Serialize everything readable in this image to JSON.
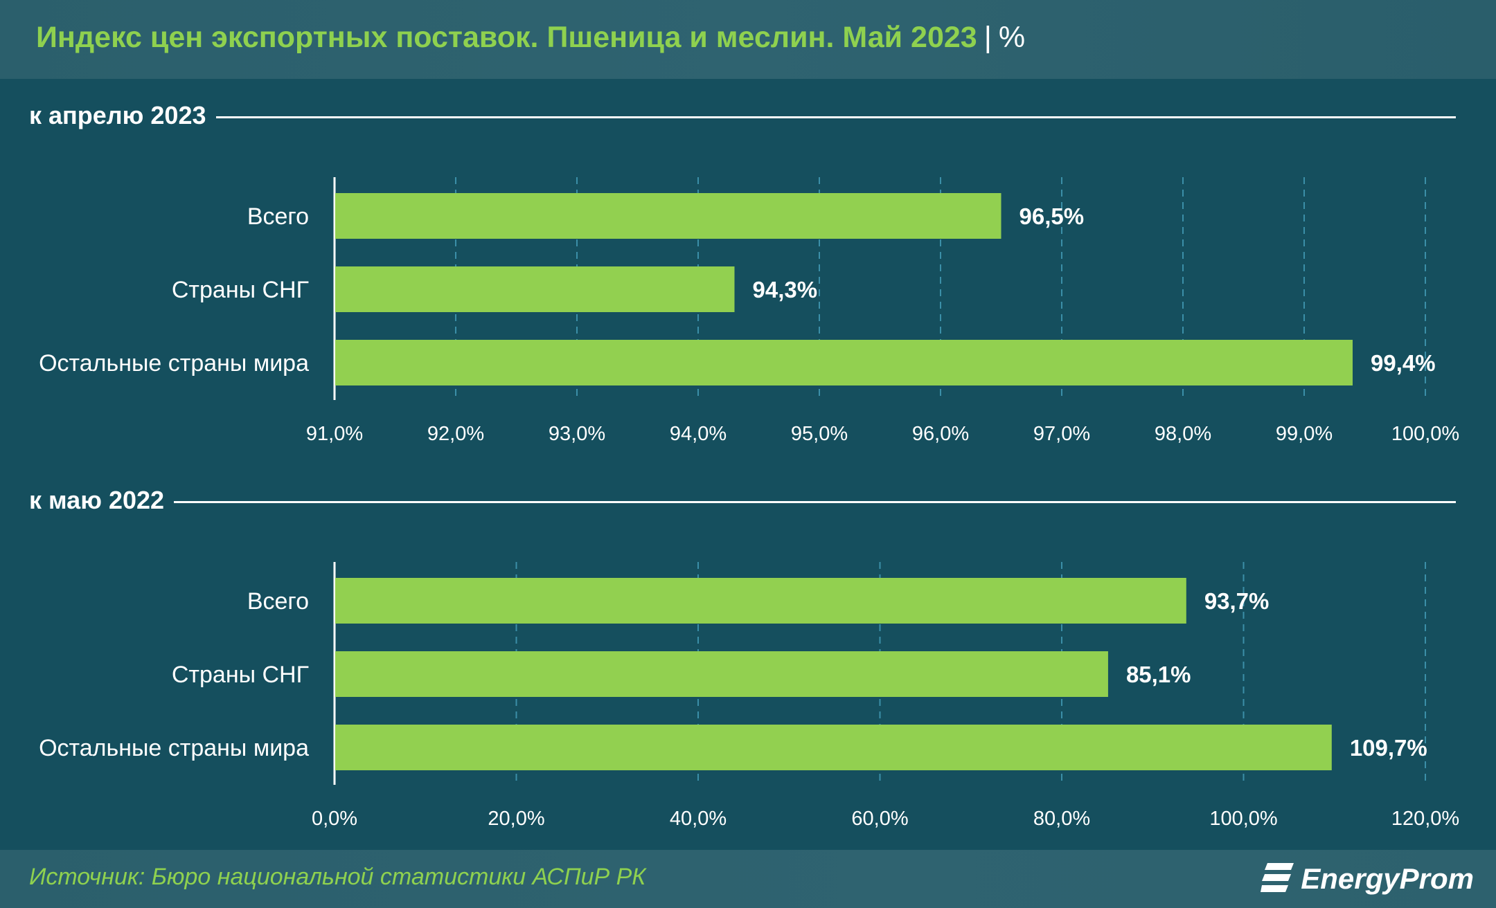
{
  "header": {
    "title": "Индекс цен экспортных поставок. Пшеница и меслин. Май 2023",
    "separator": "|",
    "unit": "%"
  },
  "colors": {
    "bar": "#92d050",
    "background": "#154f5e",
    "grid": "#3b8fa8",
    "title": "#8fd14f"
  },
  "chart_data": [
    {
      "type": "bar",
      "orientation": "horizontal",
      "title": "к апрелю 2023",
      "categories": [
        "Всего",
        "Страны СНГ",
        "Остальные страны мира"
      ],
      "values": [
        96.5,
        94.3,
        99.4
      ],
      "value_labels": [
        "96,5%",
        "94,3%",
        "99,4%"
      ],
      "xlim": [
        91,
        100
      ],
      "ticks": [
        91,
        92,
        93,
        94,
        95,
        96,
        97,
        98,
        99,
        100
      ],
      "tick_labels": [
        "91,0%",
        "92,0%",
        "93,0%",
        "94,0%",
        "95,0%",
        "96,0%",
        "97,0%",
        "98,0%",
        "99,0%",
        "100,0%"
      ],
      "grid": true
    },
    {
      "type": "bar",
      "orientation": "horizontal",
      "title": "к маю 2022",
      "categories": [
        "Всего",
        "Страны СНГ",
        "Остальные страны мира"
      ],
      "values": [
        93.7,
        85.1,
        109.7
      ],
      "value_labels": [
        "93,7%",
        "85,1%",
        "109,7%"
      ],
      "xlim": [
        0,
        120
      ],
      "ticks": [
        0,
        20,
        40,
        60,
        80,
        100,
        120
      ],
      "tick_labels": [
        "0,0%",
        "20,0%",
        "40,0%",
        "60,0%",
        "80,0%",
        "100,0%",
        "120,0%"
      ],
      "grid": true
    }
  ],
  "footer": {
    "source": "Источник: Бюро национальной статистики АСПиР РК",
    "logo_text": "EnergyProm",
    "logo_icon": "energyprom-stripes-icon"
  }
}
